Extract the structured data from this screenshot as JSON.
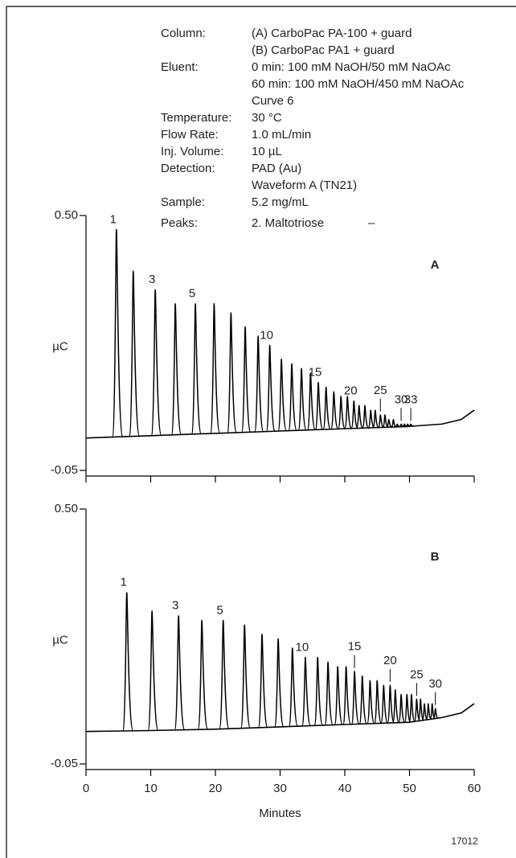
{
  "conditions": [
    {
      "label": "Column:",
      "lines": [
        "(A) CarboPac PA-100 + guard",
        "(B) CarboPac PA1 + guard"
      ]
    },
    {
      "label": "Eluent:",
      "lines": [
        "0 min: 100 mM NaOH/50 mM NaOAc",
        "60 min: 100 mM NaOH/450 mM NaOAc",
        "Curve 6"
      ]
    },
    {
      "label": "Temperature:",
      "lines": [
        "30 °C"
      ]
    },
    {
      "label": "Flow Rate:",
      "lines": [
        "1.0 mL/min"
      ]
    },
    {
      "label": "Inj. Volume:",
      "lines": [
        "10 µL"
      ]
    },
    {
      "label": "Detection:",
      "lines": [
        "PAD (Au)",
        "Waveform A (TN21)"
      ]
    },
    {
      "label": "Sample:",
      "lines": [
        "5.2 mg/mL"
      ]
    },
    {
      "label": "Peaks:",
      "lines": [
        "2. Maltotriose"
      ],
      "amount": "–"
    }
  ],
  "figure_number": "17012",
  "chart_data": [
    {
      "type": "chromatogram",
      "panel_label": "A",
      "ylabel": "µC",
      "ylim": [
        -0.05,
        0.5
      ],
      "yticks": [
        {
          "value": 0.5,
          "label": "0.50"
        },
        -0.05
      ],
      "xlim": [
        0,
        60
      ],
      "xticks": [
        0,
        10,
        20,
        30,
        40,
        50,
        60
      ],
      "show_xtick_labels": false,
      "color": "#000000",
      "baseline": {
        "x": [
          0,
          10,
          20,
          30,
          40,
          50,
          55,
          58,
          60
        ],
        "values": [
          0.02,
          0.025,
          0.03,
          0.035,
          0.04,
          0.045,
          0.05,
          0.06,
          0.08
        ]
      },
      "x": [
        4.7,
        7.3,
        10.7,
        13.8,
        16.9,
        19.8,
        22.4,
        24.6,
        26.6,
        28.4,
        30.2,
        31.8,
        33.3,
        34.7,
        35.9,
        37.1,
        38.3,
        39.4,
        40.4,
        41.4,
        42.2,
        43.1,
        44.0,
        44.7,
        45.5,
        46.2,
        46.8,
        47.5,
        48.1,
        48.7,
        49.2,
        49.7,
        50.2
      ],
      "values": [
        0.47,
        0.38,
        0.34,
        0.31,
        0.31,
        0.31,
        0.29,
        0.26,
        0.24,
        0.22,
        0.19,
        0.18,
        0.17,
        0.16,
        0.14,
        0.13,
        0.12,
        0.11,
        0.11,
        0.1,
        0.09,
        0.09,
        0.08,
        0.08,
        0.07,
        0.07,
        0.06,
        0.06,
        0.05,
        0.05,
        0.05,
        0.05,
        0.05
      ],
      "value_labels": [
        "1",
        null,
        "3",
        null,
        "5",
        null,
        null,
        null,
        null,
        "10",
        null,
        null,
        null,
        null,
        "15",
        null,
        null,
        null,
        null,
        "20",
        null,
        null,
        null,
        null,
        "25",
        null,
        null,
        null,
        null,
        "30",
        null,
        null,
        "33"
      ]
    },
    {
      "type": "chromatogram",
      "panel_label": "B",
      "ylabel": "µC",
      "xlabel": "Minutes",
      "ylim": [
        -0.05,
        0.5
      ],
      "yticks": [
        {
          "value": 0.5,
          "label": "0.50"
        },
        -0.05
      ],
      "xlim": [
        0,
        60
      ],
      "xticks": [
        0,
        10,
        20,
        30,
        40,
        50,
        60
      ],
      "show_xtick_labels": true,
      "color": "#000000",
      "baseline": {
        "x": [
          0,
          10,
          20,
          30,
          40,
          50,
          55,
          58,
          60
        ],
        "values": [
          0.02,
          0.022,
          0.025,
          0.03,
          0.035,
          0.04,
          0.05,
          0.06,
          0.08
        ]
      },
      "x": [
        6.3,
        10.2,
        14.3,
        17.9,
        21.2,
        24.5,
        27.2,
        29.7,
        31.9,
        33.9,
        35.8,
        37.4,
        38.9,
        40.2,
        41.5,
        42.7,
        43.9,
        45.0,
        46.0,
        47.0,
        47.8,
        48.7,
        49.6,
        50.3,
        51.1,
        51.7,
        52.3,
        52.9,
        53.5,
        54.0
      ],
      "values": [
        0.32,
        0.28,
        0.27,
        0.26,
        0.26,
        0.25,
        0.23,
        0.22,
        0.2,
        0.18,
        0.18,
        0.17,
        0.16,
        0.16,
        0.15,
        0.14,
        0.13,
        0.13,
        0.12,
        0.12,
        0.11,
        0.1,
        0.1,
        0.1,
        0.09,
        0.09,
        0.08,
        0.08,
        0.08,
        0.07
      ],
      "value_labels": [
        "1",
        null,
        "3",
        null,
        "5",
        null,
        null,
        null,
        null,
        "10",
        null,
        null,
        null,
        null,
        "15",
        null,
        null,
        null,
        null,
        "20",
        null,
        null,
        null,
        null,
        "25",
        null,
        null,
        null,
        null,
        "30"
      ]
    }
  ]
}
